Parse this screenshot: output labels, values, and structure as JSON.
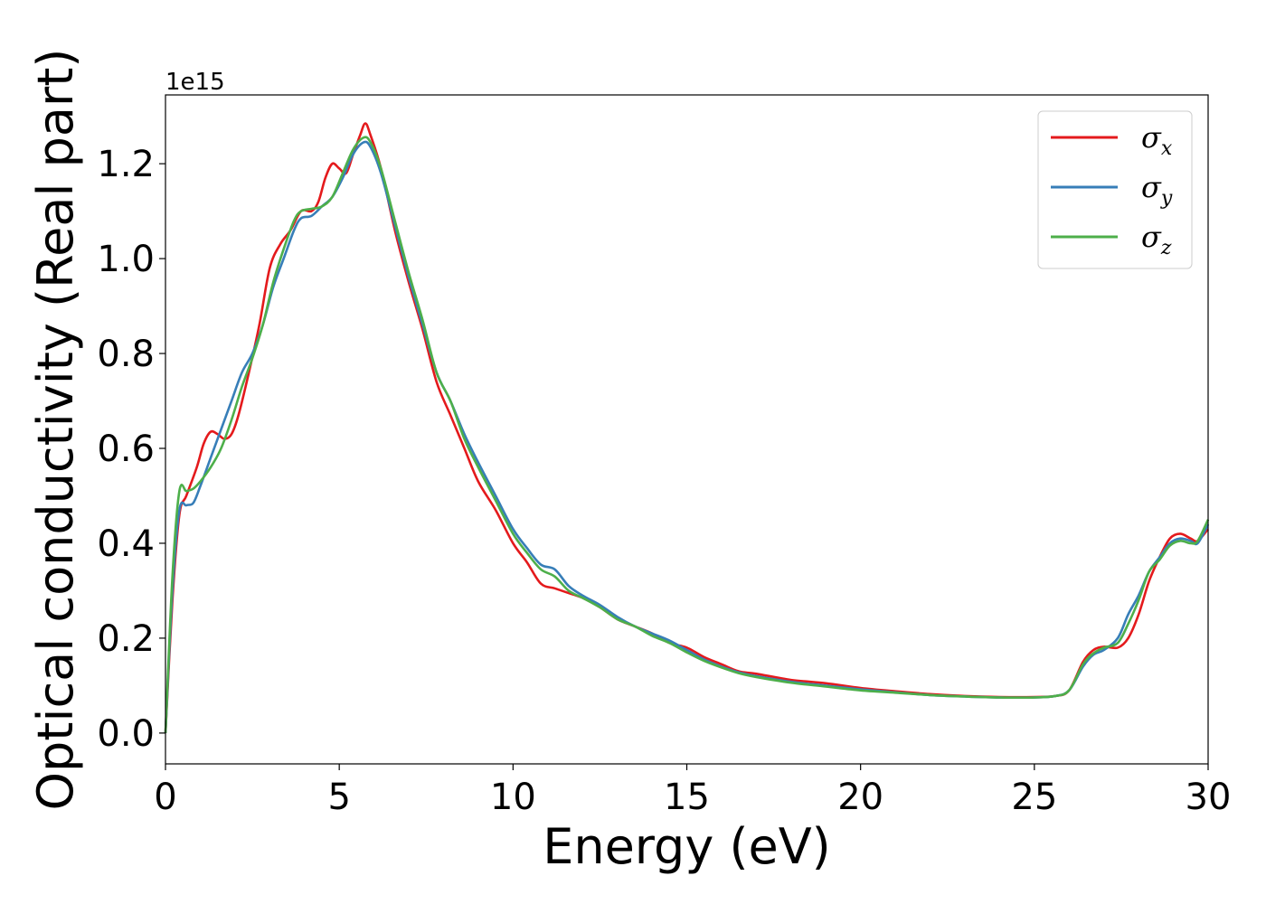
{
  "chart_data": {
    "type": "line",
    "xlabel": "Energy (eV)",
    "ylabel": "Optical conductivity (Real part)",
    "y_offset_label": "1e15",
    "y_scale": 1000000000000000.0,
    "xlim": [
      0,
      30
    ],
    "ylim": [
      -0.065,
      1.345
    ],
    "x_ticks": [
      0,
      5,
      10,
      15,
      20,
      25,
      30
    ],
    "x_tick_labels": [
      "0",
      "5",
      "10",
      "15",
      "20",
      "25",
      "30"
    ],
    "y_ticks": [
      0.0,
      0.2,
      0.4,
      0.6,
      0.8,
      1.0,
      1.2
    ],
    "y_tick_labels": [
      "0.0",
      "0.2",
      "0.4",
      "0.6",
      "0.8",
      "1.0",
      "1.2"
    ],
    "grid": false,
    "legend_position": "top-right",
    "series": [
      {
        "name": "σx",
        "legend_symbol": "σ",
        "legend_subscript": "x",
        "color": "#e41a1c",
        "points": [
          [
            0,
            0
          ],
          [
            0.2,
            0.28
          ],
          [
            0.4,
            0.46
          ],
          [
            0.6,
            0.5
          ],
          [
            0.9,
            0.56
          ],
          [
            1.1,
            0.61
          ],
          [
            1.3,
            0.635
          ],
          [
            1.5,
            0.63
          ],
          [
            1.7,
            0.62
          ],
          [
            1.9,
            0.63
          ],
          [
            2.1,
            0.67
          ],
          [
            2.4,
            0.76
          ],
          [
            2.7,
            0.86
          ],
          [
            3.0,
            0.98
          ],
          [
            3.3,
            1.03
          ],
          [
            3.6,
            1.06
          ],
          [
            3.9,
            1.1
          ],
          [
            4.2,
            1.1
          ],
          [
            4.4,
            1.12
          ],
          [
            4.6,
            1.17
          ],
          [
            4.8,
            1.2
          ],
          [
            5.0,
            1.19
          ],
          [
            5.2,
            1.18
          ],
          [
            5.4,
            1.22
          ],
          [
            5.6,
            1.26
          ],
          [
            5.75,
            1.285
          ],
          [
            5.9,
            1.26
          ],
          [
            6.2,
            1.19
          ],
          [
            6.6,
            1.06
          ],
          [
            7.0,
            0.95
          ],
          [
            7.4,
            0.85
          ],
          [
            7.8,
            0.74
          ],
          [
            8.2,
            0.67
          ],
          [
            8.6,
            0.6
          ],
          [
            9.0,
            0.53
          ],
          [
            9.5,
            0.47
          ],
          [
            10.0,
            0.4
          ],
          [
            10.4,
            0.36
          ],
          [
            10.8,
            0.315
          ],
          [
            11.2,
            0.305
          ],
          [
            11.6,
            0.295
          ],
          [
            12.0,
            0.285
          ],
          [
            12.5,
            0.265
          ],
          [
            13.0,
            0.24
          ],
          [
            13.5,
            0.225
          ],
          [
            14.0,
            0.21
          ],
          [
            14.5,
            0.19
          ],
          [
            15.0,
            0.18
          ],
          [
            15.5,
            0.16
          ],
          [
            16.0,
            0.145
          ],
          [
            16.5,
            0.13
          ],
          [
            17.0,
            0.125
          ],
          [
            18.0,
            0.112
          ],
          [
            19.0,
            0.105
          ],
          [
            20.0,
            0.095
          ],
          [
            21.0,
            0.088
          ],
          [
            22.0,
            0.082
          ],
          [
            23.0,
            0.078
          ],
          [
            24.0,
            0.076
          ],
          [
            25.0,
            0.076
          ],
          [
            25.6,
            0.078
          ],
          [
            26.0,
            0.09
          ],
          [
            26.4,
            0.15
          ],
          [
            26.7,
            0.175
          ],
          [
            27.0,
            0.182
          ],
          [
            27.4,
            0.18
          ],
          [
            27.7,
            0.2
          ],
          [
            28.0,
            0.25
          ],
          [
            28.3,
            0.32
          ],
          [
            28.6,
            0.37
          ],
          [
            28.9,
            0.41
          ],
          [
            29.2,
            0.42
          ],
          [
            29.5,
            0.41
          ],
          [
            29.7,
            0.405
          ],
          [
            30.0,
            0.43
          ]
        ]
      },
      {
        "name": "σy",
        "legend_symbol": "σ",
        "legend_subscript": "y",
        "color": "#377eb8",
        "points": [
          [
            0,
            0
          ],
          [
            0.2,
            0.3
          ],
          [
            0.4,
            0.47
          ],
          [
            0.6,
            0.48
          ],
          [
            0.8,
            0.485
          ],
          [
            1.0,
            0.52
          ],
          [
            1.3,
            0.58
          ],
          [
            1.6,
            0.64
          ],
          [
            1.9,
            0.7
          ],
          [
            2.2,
            0.76
          ],
          [
            2.5,
            0.8
          ],
          [
            2.8,
            0.86
          ],
          [
            3.1,
            0.94
          ],
          [
            3.4,
            1.0
          ],
          [
            3.7,
            1.06
          ],
          [
            3.9,
            1.085
          ],
          [
            4.2,
            1.09
          ],
          [
            4.5,
            1.11
          ],
          [
            4.8,
            1.13
          ],
          [
            5.1,
            1.17
          ],
          [
            5.4,
            1.22
          ],
          [
            5.7,
            1.245
          ],
          [
            5.9,
            1.235
          ],
          [
            6.2,
            1.18
          ],
          [
            6.6,
            1.07
          ],
          [
            7.0,
            0.96
          ],
          [
            7.4,
            0.86
          ],
          [
            7.8,
            0.76
          ],
          [
            8.2,
            0.7
          ],
          [
            8.6,
            0.63
          ],
          [
            9.0,
            0.57
          ],
          [
            9.5,
            0.5
          ],
          [
            10.0,
            0.43
          ],
          [
            10.4,
            0.39
          ],
          [
            10.8,
            0.355
          ],
          [
            11.2,
            0.345
          ],
          [
            11.6,
            0.31
          ],
          [
            12.0,
            0.29
          ],
          [
            12.5,
            0.27
          ],
          [
            13.0,
            0.245
          ],
          [
            13.5,
            0.225
          ],
          [
            14.0,
            0.21
          ],
          [
            14.5,
            0.195
          ],
          [
            15.0,
            0.175
          ],
          [
            15.5,
            0.155
          ],
          [
            16.0,
            0.14
          ],
          [
            16.5,
            0.128
          ],
          [
            17.0,
            0.12
          ],
          [
            18.0,
            0.108
          ],
          [
            19.0,
            0.1
          ],
          [
            20.0,
            0.092
          ],
          [
            21.0,
            0.086
          ],
          [
            22.0,
            0.08
          ],
          [
            23.0,
            0.077
          ],
          [
            24.0,
            0.075
          ],
          [
            25.0,
            0.075
          ],
          [
            25.6,
            0.078
          ],
          [
            26.0,
            0.09
          ],
          [
            26.4,
            0.14
          ],
          [
            26.7,
            0.165
          ],
          [
            27.0,
            0.175
          ],
          [
            27.4,
            0.2
          ],
          [
            27.7,
            0.25
          ],
          [
            28.0,
            0.29
          ],
          [
            28.3,
            0.34
          ],
          [
            28.6,
            0.37
          ],
          [
            28.9,
            0.4
          ],
          [
            29.2,
            0.41
          ],
          [
            29.5,
            0.405
          ],
          [
            29.7,
            0.4
          ],
          [
            30.0,
            0.44
          ]
        ]
      },
      {
        "name": "σz",
        "legend_symbol": "σ",
        "legend_subscript": "z",
        "color": "#4daf4a",
        "points": [
          [
            0,
            0
          ],
          [
            0.2,
            0.33
          ],
          [
            0.4,
            0.51
          ],
          [
            0.6,
            0.51
          ],
          [
            0.8,
            0.515
          ],
          [
            1.0,
            0.53
          ],
          [
            1.3,
            0.56
          ],
          [
            1.6,
            0.6
          ],
          [
            1.9,
            0.66
          ],
          [
            2.2,
            0.73
          ],
          [
            2.5,
            0.79
          ],
          [
            2.8,
            0.86
          ],
          [
            3.1,
            0.95
          ],
          [
            3.4,
            1.02
          ],
          [
            3.7,
            1.08
          ],
          [
            3.9,
            1.1
          ],
          [
            4.2,
            1.105
          ],
          [
            4.5,
            1.11
          ],
          [
            4.8,
            1.13
          ],
          [
            5.1,
            1.18
          ],
          [
            5.4,
            1.23
          ],
          [
            5.7,
            1.255
          ],
          [
            5.9,
            1.245
          ],
          [
            6.2,
            1.19
          ],
          [
            6.6,
            1.08
          ],
          [
            7.0,
            0.97
          ],
          [
            7.4,
            0.87
          ],
          [
            7.8,
            0.76
          ],
          [
            8.2,
            0.7
          ],
          [
            8.6,
            0.62
          ],
          [
            9.0,
            0.56
          ],
          [
            9.5,
            0.49
          ],
          [
            10.0,
            0.42
          ],
          [
            10.4,
            0.38
          ],
          [
            10.8,
            0.345
          ],
          [
            11.2,
            0.33
          ],
          [
            11.6,
            0.3
          ],
          [
            12.0,
            0.285
          ],
          [
            12.5,
            0.265
          ],
          [
            13.0,
            0.24
          ],
          [
            13.5,
            0.225
          ],
          [
            14.0,
            0.205
          ],
          [
            14.5,
            0.19
          ],
          [
            15.0,
            0.17
          ],
          [
            15.5,
            0.152
          ],
          [
            16.0,
            0.138
          ],
          [
            16.5,
            0.126
          ],
          [
            17.0,
            0.118
          ],
          [
            18.0,
            0.106
          ],
          [
            19.0,
            0.098
          ],
          [
            20.0,
            0.09
          ],
          [
            21.0,
            0.085
          ],
          [
            22.0,
            0.08
          ],
          [
            23.0,
            0.077
          ],
          [
            24.0,
            0.075
          ],
          [
            25.0,
            0.075
          ],
          [
            25.6,
            0.078
          ],
          [
            26.0,
            0.09
          ],
          [
            26.4,
            0.145
          ],
          [
            26.7,
            0.168
          ],
          [
            27.0,
            0.18
          ],
          [
            27.4,
            0.19
          ],
          [
            27.7,
            0.23
          ],
          [
            28.0,
            0.28
          ],
          [
            28.3,
            0.34
          ],
          [
            28.6,
            0.365
          ],
          [
            28.9,
            0.395
          ],
          [
            29.2,
            0.405
          ],
          [
            29.5,
            0.4
          ],
          [
            29.7,
            0.405
          ],
          [
            30.0,
            0.45
          ]
        ]
      }
    ]
  }
}
